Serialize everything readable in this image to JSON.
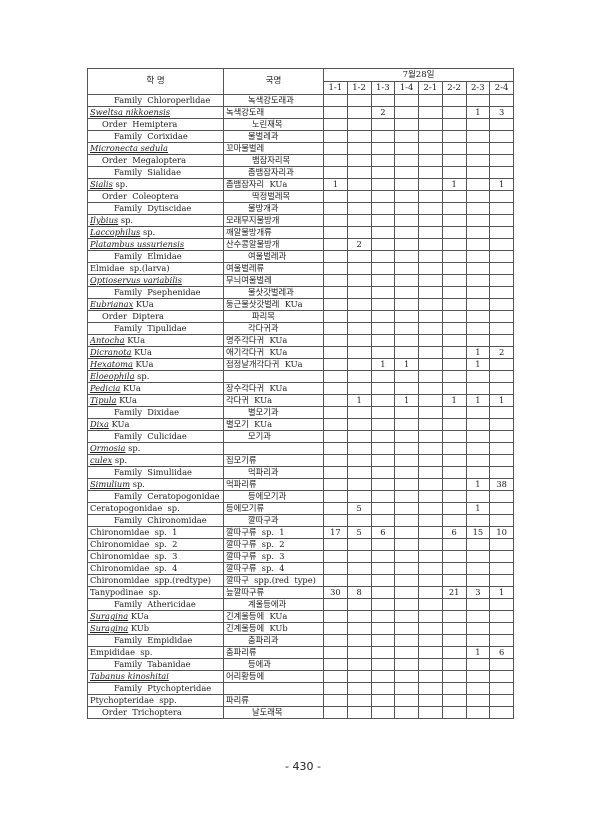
{
  "header": {
    "sci_name": "학 명",
    "kor_name": "국명",
    "date": "7월28일",
    "sites": [
      "1-1",
      "1-2",
      "1-3",
      "1-4",
      "2-1",
      "2-2",
      "2-3",
      "2-4"
    ]
  },
  "rows": [
    {
      "level": "family",
      "sci": "Family  Chloroperlidae",
      "kor": "녹색강도래과",
      "v": [
        "",
        "",
        "",
        "",
        "",
        "",
        "",
        ""
      ]
    },
    {
      "level": "species",
      "it": "Sweltsa  nikkoensis",
      "rt": "",
      "kor": "녹색강도래",
      "v": [
        "",
        "",
        "2",
        "",
        "",
        "",
        "1",
        "3"
      ]
    },
    {
      "level": "order",
      "sci": "Order  Hemiptera",
      "kor": "노린재목",
      "v": [
        "",
        "",
        "",
        "",
        "",
        "",
        "",
        ""
      ]
    },
    {
      "level": "family",
      "sci": "Family  Corixidae",
      "kor": "물벌레과",
      "v": [
        "",
        "",
        "",
        "",
        "",
        "",
        "",
        ""
      ]
    },
    {
      "level": "species",
      "it": "Micronecta  sedula",
      "rt": "",
      "kor": "꼬마물벌레",
      "v": [
        "",
        "",
        "",
        "",
        "",
        "",
        "",
        ""
      ]
    },
    {
      "level": "order",
      "sci": "Order  Megaloptera",
      "kor": "뱀잠자리목",
      "v": [
        "",
        "",
        "",
        "",
        "",
        "",
        "",
        ""
      ]
    },
    {
      "level": "family",
      "sci": "Family  Sialidae",
      "kor": "좀뱀잠자리과",
      "v": [
        "",
        "",
        "",
        "",
        "",
        "",
        "",
        ""
      ]
    },
    {
      "level": "species",
      "it": "Sialis",
      "rt": " sp.",
      "kor": "좀뱀잠자리  KUa",
      "v": [
        "1",
        "",
        "",
        "",
        "",
        "1",
        "",
        "1"
      ]
    },
    {
      "level": "order",
      "sci": "Order  Coleoptera",
      "kor": "딱정벌레목",
      "v": [
        "",
        "",
        "",
        "",
        "",
        "",
        "",
        ""
      ]
    },
    {
      "level": "family",
      "sci": "Family  Dytiscidae",
      "kor": "물방개과",
      "v": [
        "",
        "",
        "",
        "",
        "",
        "",
        "",
        ""
      ]
    },
    {
      "level": "species",
      "it": "Ilybius",
      "rt": " sp.",
      "kor": "모래무지물방개",
      "v": [
        "",
        "",
        "",
        "",
        "",
        "",
        "",
        ""
      ]
    },
    {
      "level": "species",
      "it": "Laccophilus",
      "rt": " sp.",
      "kor": "깨알물방개류",
      "v": [
        "",
        "",
        "",
        "",
        "",
        "",
        "",
        ""
      ]
    },
    {
      "level": "species",
      "it": "Platambus  ussuriensis",
      "rt": "",
      "kor": "산수콩알물방개",
      "v": [
        "",
        "2",
        "",
        "",
        "",
        "",
        "",
        ""
      ]
    },
    {
      "level": "family",
      "sci": "Family  Elmidae",
      "kor": "여울벌레과",
      "v": [
        "",
        "",
        "",
        "",
        "",
        "",
        "",
        ""
      ]
    },
    {
      "level": "species",
      "it": "",
      "rt": "Elmidae  sp.(larva)",
      "kor": "여울벌레류",
      "v": [
        "",
        "",
        "",
        "",
        "",
        "",
        "",
        ""
      ]
    },
    {
      "level": "species",
      "it": "Optioservus  variabilis",
      "rt": "",
      "kor": "무늬여울벌레",
      "v": [
        "",
        "",
        "",
        "",
        "",
        "",
        "",
        ""
      ]
    },
    {
      "level": "family",
      "sci": "Family  Psephenidae",
      "kor": "물삿갓벌레과",
      "v": [
        "",
        "",
        "",
        "",
        "",
        "",
        "",
        ""
      ]
    },
    {
      "level": "species",
      "it": "Eubrianax",
      "rt": " KUa",
      "kor": "둥근물삿갓벌레  KUa",
      "v": [
        "",
        "",
        "",
        "",
        "",
        "",
        "",
        ""
      ]
    },
    {
      "level": "order",
      "sci": "Order  Diptera",
      "kor": "파리목",
      "v": [
        "",
        "",
        "",
        "",
        "",
        "",
        "",
        ""
      ]
    },
    {
      "level": "family",
      "sci": "Family  Tipulidae",
      "kor": "각다귀과",
      "v": [
        "",
        "",
        "",
        "",
        "",
        "",
        "",
        ""
      ]
    },
    {
      "level": "species",
      "it": "Antocha",
      "rt": " KUa",
      "kor": "명주각다귀  KUa",
      "v": [
        "",
        "",
        "",
        "",
        "",
        "",
        "",
        ""
      ]
    },
    {
      "level": "species",
      "it": "Dicranota",
      "rt": " KUa",
      "kor": "애기각다귀  KUa",
      "v": [
        "",
        "",
        "",
        "",
        "",
        "",
        "1",
        "2"
      ]
    },
    {
      "level": "species",
      "it": "Hexatoma",
      "rt": " KUa",
      "kor": "점정날개각다귀  KUa",
      "v": [
        "",
        "",
        "1",
        "1",
        "",
        "",
        "1",
        ""
      ]
    },
    {
      "level": "species",
      "it": "Eloeophila",
      "rt": " sp.",
      "kor": "",
      "v": [
        "",
        "",
        "",
        "",
        "",
        "",
        "",
        ""
      ]
    },
    {
      "level": "species",
      "it": "Pedicia",
      "rt": " KUa",
      "kor": "장수각다귀  KUa",
      "v": [
        "",
        "",
        "",
        "",
        "",
        "",
        "",
        ""
      ]
    },
    {
      "level": "species",
      "it": "Tipula",
      "rt": " KUa",
      "kor": "각다귀  KUa",
      "v": [
        "",
        "1",
        "",
        "1",
        "",
        "1",
        "1",
        "1"
      ]
    },
    {
      "level": "family",
      "sci": "Family  Dixidae",
      "kor": "별모기과",
      "v": [
        "",
        "",
        "",
        "",
        "",
        "",
        "",
        ""
      ]
    },
    {
      "level": "species",
      "it": "Dixa",
      "rt": " KUa",
      "kor": "별모기  KUa",
      "v": [
        "",
        "",
        "",
        "",
        "",
        "",
        "",
        ""
      ]
    },
    {
      "level": "family",
      "sci": "Family  Culicidae",
      "kor": "모기과",
      "v": [
        "",
        "",
        "",
        "",
        "",
        "",
        "",
        ""
      ]
    },
    {
      "level": "species",
      "it": "Ormosia",
      "rt": " sp.",
      "kor": "",
      "v": [
        "",
        "",
        "",
        "",
        "",
        "",
        "",
        ""
      ]
    },
    {
      "level": "species",
      "it": "culex",
      "rt": " sp.",
      "kor": "집모기류",
      "v": [
        "",
        "",
        "",
        "",
        "",
        "",
        "",
        ""
      ]
    },
    {
      "level": "family",
      "sci": "Family  Simuliidae",
      "kor": "먹파리과",
      "v": [
        "",
        "",
        "",
        "",
        "",
        "",
        "",
        ""
      ]
    },
    {
      "level": "species",
      "it": "Simulium",
      "rt": " sp.",
      "kor": "먹파리류",
      "v": [
        "",
        "",
        "",
        "",
        "",
        "",
        "1",
        "38"
      ]
    },
    {
      "level": "family",
      "sci": "Family  Ceratopogonidae",
      "kor": "등에모기과",
      "v": [
        "",
        "",
        "",
        "",
        "",
        "",
        "",
        ""
      ]
    },
    {
      "level": "species",
      "it": "",
      "rt": "Ceratopogonidae  sp.",
      "kor": "등에모기류",
      "v": [
        "",
        "5",
        "",
        "",
        "",
        "",
        "1",
        ""
      ]
    },
    {
      "level": "family",
      "sci": "Family  Chironomidae",
      "kor": "깔따구과",
      "v": [
        "",
        "",
        "",
        "",
        "",
        "",
        "",
        ""
      ]
    },
    {
      "level": "species",
      "it": "",
      "rt": "Chironomidae  sp.  1",
      "kor": "깔따구류  sp.  1",
      "v": [
        "17",
        "5",
        "6",
        "",
        "",
        "6",
        "15",
        "10"
      ]
    },
    {
      "level": "species",
      "it": "",
      "rt": "Chironomidae  sp.  2",
      "kor": "깔따구류  sp.  2",
      "v": [
        "",
        "",
        "",
        "",
        "",
        "",
        "",
        ""
      ]
    },
    {
      "level": "species",
      "it": "",
      "rt": "Chironomidae  sp.  3",
      "kor": "깔따구류  sp.  3",
      "v": [
        "",
        "",
        "",
        "",
        "",
        "",
        "",
        ""
      ]
    },
    {
      "level": "species",
      "it": "",
      "rt": "Chironomidae  sp.  4",
      "kor": "깔따구류  sp.  4",
      "v": [
        "",
        "",
        "",
        "",
        "",
        "",
        "",
        ""
      ]
    },
    {
      "level": "species",
      "it": "",
      "rt": "Chironomidae  spp.(redtype)",
      "kor": "깔따구  spp.(red  type)",
      "v": [
        "",
        "",
        "",
        "",
        "",
        "",
        "",
        ""
      ]
    },
    {
      "level": "species",
      "it": "",
      "rt": "Tanypodinae  sp.",
      "kor": "늪깔따구류",
      "v": [
        "30",
        "8",
        "",
        "",
        "",
        "21",
        "3",
        "1"
      ]
    },
    {
      "level": "family",
      "sci": "Family  Athericidae",
      "kor": "계울등에과",
      "v": [
        "",
        "",
        "",
        "",
        "",
        "",
        "",
        ""
      ]
    },
    {
      "level": "species",
      "it": "Suragina",
      "rt": " KUa",
      "kor": "긴계울등에  KUa",
      "v": [
        "",
        "",
        "",
        "",
        "",
        "",
        "",
        ""
      ]
    },
    {
      "level": "species",
      "it": "Suragina",
      "rt": " KUb",
      "kor": "긴계울등에  KUb",
      "v": [
        "",
        "",
        "",
        "",
        "",
        "",
        "",
        ""
      ]
    },
    {
      "level": "family",
      "sci": "Family  Empididae",
      "kor": "춤파리과",
      "v": [
        "",
        "",
        "",
        "",
        "",
        "",
        "",
        ""
      ]
    },
    {
      "level": "species",
      "it": "",
      "rt": "Empididae  sp.",
      "kor": "춤파리류",
      "v": [
        "",
        "",
        "",
        "",
        "",
        "",
        "1",
        "6"
      ]
    },
    {
      "level": "family",
      "sci": "Family  Tabanidae",
      "kor": "등에과",
      "v": [
        "",
        "",
        "",
        "",
        "",
        "",
        "",
        ""
      ]
    },
    {
      "level": "species",
      "it": "Tabanus  kinoshitai",
      "rt": "",
      "kor": "어리황등에",
      "v": [
        "",
        "",
        "",
        "",
        "",
        "",
        "",
        ""
      ]
    },
    {
      "level": "family",
      "sci": "Family  Ptychopteridae",
      "kor": "",
      "v": [
        "",
        "",
        "",
        "",
        "",
        "",
        "",
        ""
      ]
    },
    {
      "level": "species",
      "it": "",
      "rt": "Ptychopteridae  spp.",
      "kor": "파리류",
      "v": [
        "",
        "",
        "",
        "",
        "",
        "",
        "",
        ""
      ]
    },
    {
      "level": "order",
      "sci": "Order  Trichoptera",
      "kor": "날도래목",
      "v": [
        "",
        "",
        "",
        "",
        "",
        "",
        "",
        ""
      ]
    }
  ],
  "page_number": "- 430 -"
}
